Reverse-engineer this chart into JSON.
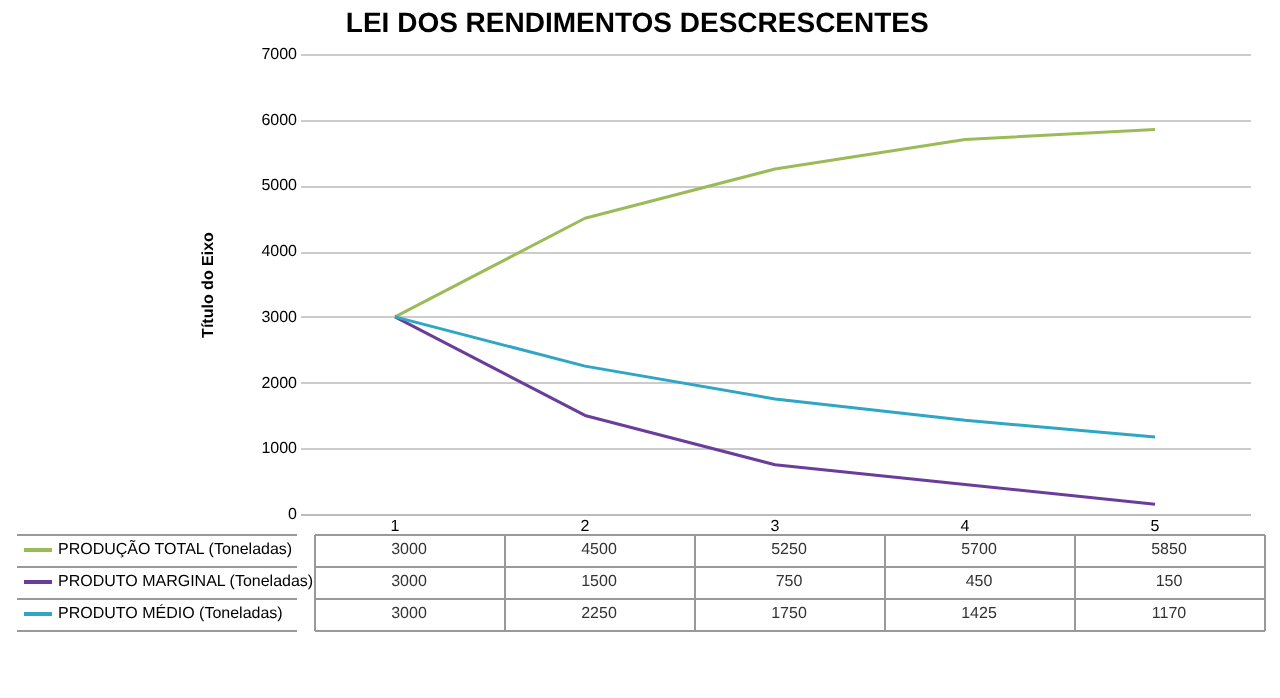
{
  "chart_data": {
    "type": "line",
    "title": "LEI DOS RENDIMENTOS DESCRESCENTES",
    "ylabel": "Título do Eixo",
    "categories": [
      "1",
      "2",
      "3",
      "4",
      "5"
    ],
    "series": [
      {
        "name": "PRODUÇÃO TOTAL (Toneladas)",
        "color": "#9bbb59",
        "values": [
          3000,
          4500,
          5250,
          5700,
          5850
        ]
      },
      {
        "name": "PRODUTO MARGINAL (Toneladas)",
        "color": "#6a3d9a",
        "values": [
          3000,
          1500,
          750,
          450,
          150
        ]
      },
      {
        "name": "PRODUTO MÉDIO (Toneladas)",
        "color": "#2ea6c4",
        "values": [
          3000,
          2250,
          1750,
          1425,
          1170
        ]
      }
    ],
    "ylim": [
      0,
      7000
    ],
    "yticks": [
      0,
      1000,
      2000,
      3000,
      4000,
      5000,
      6000,
      7000
    ],
    "grid": "y",
    "marker": "none",
    "line_style": "solid",
    "legend": "bottom",
    "data_labels": true
  }
}
